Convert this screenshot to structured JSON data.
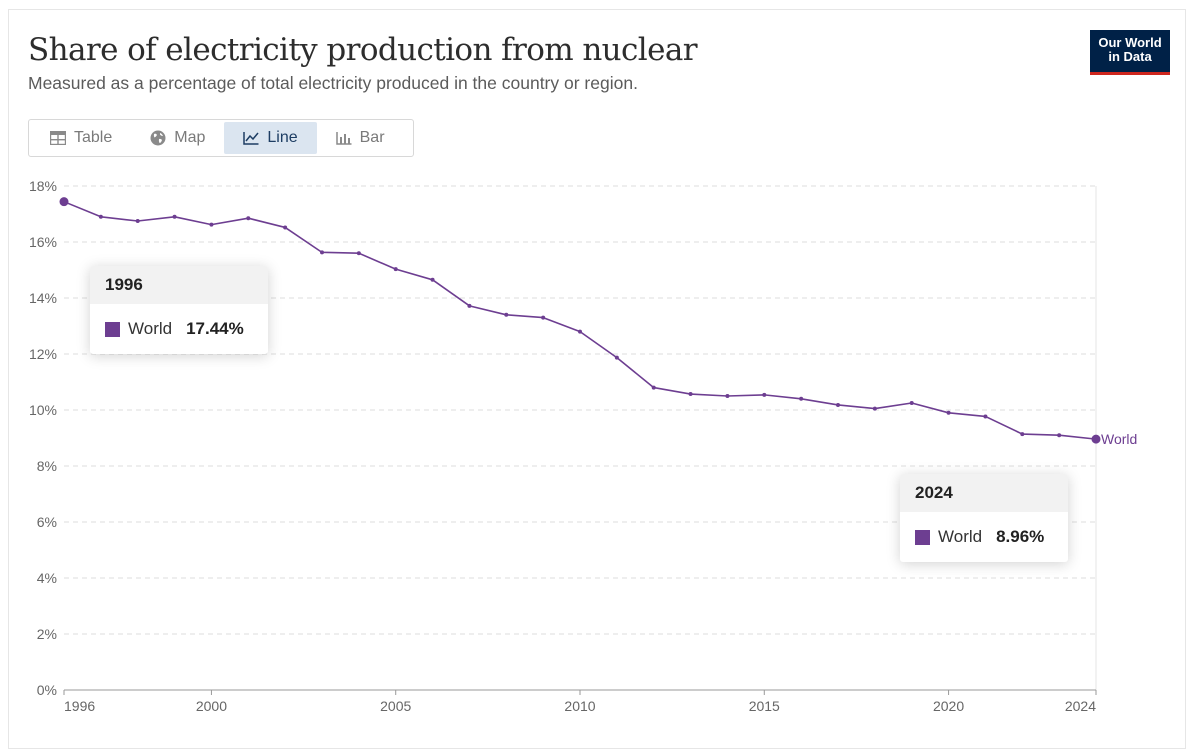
{
  "header": {
    "title": "Share of electricity production from nuclear",
    "subtitle": "Measured as a percentage of total electricity produced in the country or region.",
    "logo_line1": "Our World",
    "logo_line2": "in Data"
  },
  "tabs": [
    {
      "label": "Table",
      "icon": "table-icon",
      "active": false
    },
    {
      "label": "Map",
      "icon": "globe-icon",
      "active": false
    },
    {
      "label": "Line",
      "icon": "line-chart-icon",
      "active": true
    },
    {
      "label": "Bar",
      "icon": "bar-chart-icon",
      "active": false
    }
  ],
  "colors": {
    "series": "#6d3e91",
    "grid": "#dddddd",
    "axis": "#999999"
  },
  "tooltips": [
    {
      "year": "1996",
      "series": "World",
      "value": "17.44%"
    },
    {
      "year": "2024",
      "series": "World",
      "value": "8.96%"
    }
  ],
  "chart_data": {
    "type": "line",
    "title": "Share of electricity production from nuclear",
    "xlabel": "",
    "ylabel": "",
    "ylim": [
      0,
      18
    ],
    "xlim": [
      1996,
      2024
    ],
    "yticks": [
      0,
      2,
      4,
      6,
      8,
      10,
      12,
      14,
      16,
      18
    ],
    "ytick_labels": [
      "0%",
      "2%",
      "4%",
      "6%",
      "8%",
      "10%",
      "12%",
      "14%",
      "16%",
      "18%"
    ],
    "xticks": [
      1996,
      2000,
      2005,
      2010,
      2015,
      2020,
      2024
    ],
    "xtick_labels": [
      "1996",
      "2000",
      "2005",
      "2010",
      "2015",
      "2020",
      "2024"
    ],
    "grid": true,
    "series": [
      {
        "name": "World",
        "end_label": "World",
        "x": [
          1996,
          1997,
          1998,
          1999,
          2000,
          2001,
          2002,
          2003,
          2004,
          2005,
          2006,
          2007,
          2008,
          2009,
          2010,
          2011,
          2012,
          2013,
          2014,
          2015,
          2016,
          2017,
          2018,
          2019,
          2020,
          2021,
          2022,
          2023,
          2024
        ],
        "values": [
          17.44,
          16.9,
          16.75,
          16.9,
          16.62,
          16.85,
          16.52,
          15.63,
          15.6,
          15.03,
          14.65,
          13.72,
          13.4,
          13.3,
          12.8,
          11.87,
          10.8,
          10.57,
          10.5,
          10.54,
          10.4,
          10.18,
          10.05,
          10.25,
          9.9,
          9.77,
          9.14,
          9.1,
          8.96
        ]
      }
    ]
  }
}
